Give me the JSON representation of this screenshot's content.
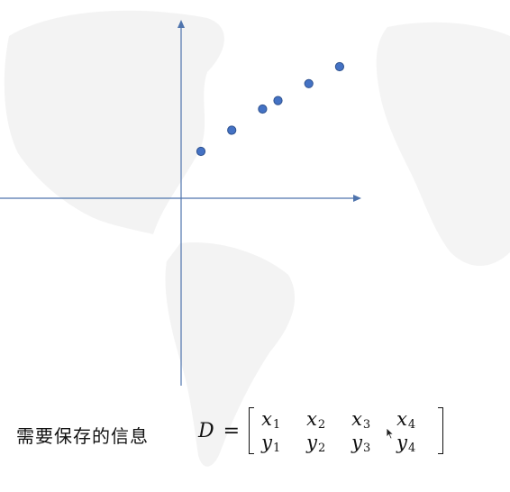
{
  "caption": "需要保存的信息",
  "formula": {
    "symbol": "D",
    "equals": "="
  },
  "matrix": {
    "row1": [
      {
        "base": "x",
        "sub": "1"
      },
      {
        "base": "x",
        "sub": "2"
      },
      {
        "base": "x",
        "sub": "3"
      },
      {
        "base": "x",
        "sub": "4"
      }
    ],
    "row2": [
      {
        "base": "y",
        "sub": "1"
      },
      {
        "base": "y",
        "sub": "2"
      },
      {
        "base": "y",
        "sub": "3"
      },
      {
        "base": "y",
        "sub": "4"
      }
    ]
  },
  "colors": {
    "axis": "#4f74ad",
    "point_fill": "#4472c4",
    "point_stroke": "#2f528f",
    "map": "#f1f1f1"
  },
  "points": [
    {
      "x": 1,
      "y": 1
    },
    {
      "x": 2,
      "y": 2
    },
    {
      "x": 3,
      "y": 3
    },
    {
      "x": 3.5,
      "y": 3.4
    },
    {
      "x": 4.5,
      "y": 4.2
    },
    {
      "x": 5.5,
      "y": 5
    }
  ]
}
